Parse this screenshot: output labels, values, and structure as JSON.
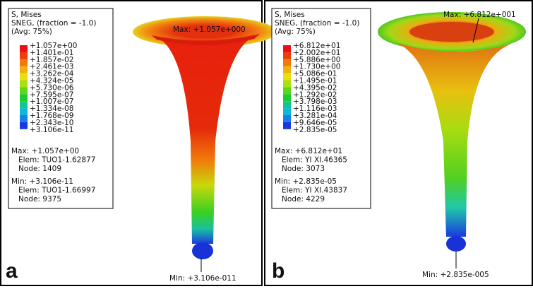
{
  "panels": [
    {
      "label": "a",
      "legend": {
        "title": [
          "S, Mises",
          "SNEG, (fraction = -1.0)",
          "(Avg: 75%)"
        ],
        "values": [
          "+1.057e+00",
          "+1.401e-01",
          "+1.857e-02",
          "+2.461e-03",
          "+3.262e-04",
          "+4.324e-05",
          "+5.730e-06",
          "+7.595e-07",
          "+1.007e-07",
          "+1.334e-08",
          "+1.768e-09",
          "+2.343e-10",
          "+3.106e-11"
        ],
        "max": [
          "Max: +1.057e+00",
          "Elem: TUO1-1.62877",
          "Node: 1409"
        ],
        "min": [
          "Min: +3.106e-11",
          "Elem: TUO1-1.66997",
          "Node: 9375"
        ]
      },
      "max_annotation": "Max: +1.057e+000",
      "min_annotation": "Min: +3.106e-011"
    },
    {
      "label": "b",
      "legend": {
        "title": [
          "S, Mises",
          "SNEG, (fraction = -1.0)",
          "(Avg: 75%)"
        ],
        "values": [
          "+6.812e+01",
          "+2.002e+01",
          "+5.886e+00",
          "+1.730e+00",
          "+5.086e-01",
          "+1.495e-01",
          "+4.395e-02",
          "+1.292e-02",
          "+3.798e-03",
          "+1.116e-03",
          "+3.281e-04",
          "+9.646e-05",
          "+2.835e-05"
        ],
        "max": [
          "Max: +6.812e+01",
          "Elem: YI XI.46365",
          "Node: 3073"
        ],
        "min": [
          "Min: +2.835e-05",
          "Elem: YI XI.43837",
          "Node: 4229"
        ]
      },
      "max_annotation": "Max: +6.812e+001",
      "min_annotation": "Min: +2.835e-005"
    }
  ]
}
